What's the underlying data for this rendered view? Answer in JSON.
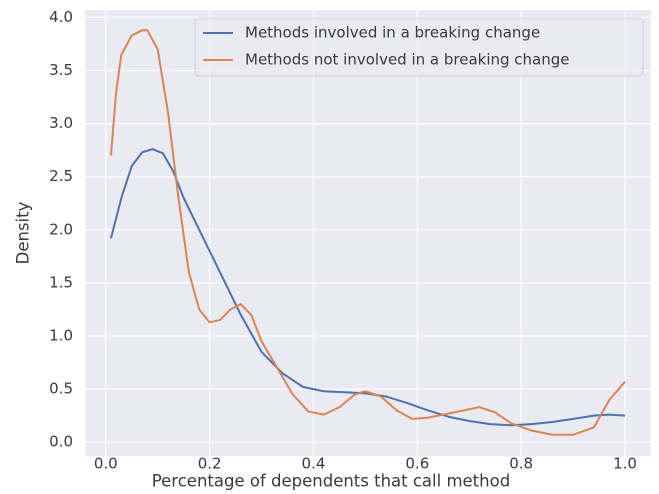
{
  "chart_data": {
    "type": "line",
    "xlabel": "Percentage of dependents that call method",
    "ylabel": "Density",
    "xlim": [
      -0.04,
      1.05
    ],
    "ylim": [
      -0.13,
      4.07
    ],
    "xticks": [
      {
        "value": 0,
        "label": "0.0"
      },
      {
        "value": 0.2,
        "label": "0.2"
      },
      {
        "value": 0.4,
        "label": "0.4"
      },
      {
        "value": 0.6,
        "label": "0.6"
      },
      {
        "value": 0.8,
        "label": "0.8"
      },
      {
        "value": 1,
        "label": "1.0"
      }
    ],
    "yticks": [
      {
        "value": 0,
        "label": "0.0"
      },
      0.5,
      {
        "value": 1,
        "label": "1.0"
      },
      1.5,
      {
        "value": 2,
        "label": "2.0"
      },
      2.5,
      {
        "value": 3,
        "label": "3.0"
      },
      3.5,
      {
        "value": 4,
        "label": "4.0"
      }
    ],
    "grid": true,
    "legend": "upper right",
    "series": [
      {
        "name": "Methods involved in a breaking change",
        "color": "#4c72b0",
        "x": [
          0.01,
          0.03,
          0.05,
          0.07,
          0.09,
          0.11,
          0.13,
          0.15,
          0.17,
          0.2,
          0.23,
          0.26,
          0.3,
          0.34,
          0.38,
          0.42,
          0.46,
          0.5,
          0.54,
          0.58,
          0.62,
          0.66,
          0.7,
          0.74,
          0.78,
          0.82,
          0.86,
          0.9,
          0.94,
          0.97,
          1.0
        ],
        "values": [
          1.92,
          2.3,
          2.6,
          2.73,
          2.76,
          2.72,
          2.55,
          2.3,
          2.1,
          1.8,
          1.5,
          1.2,
          0.85,
          0.65,
          0.52,
          0.48,
          0.47,
          0.46,
          0.43,
          0.37,
          0.3,
          0.24,
          0.2,
          0.17,
          0.16,
          0.17,
          0.19,
          0.22,
          0.25,
          0.26,
          0.25
        ]
      },
      {
        "name": "Methods not involved in a breaking change",
        "color": "#dd8452",
        "x": [
          0.01,
          0.02,
          0.03,
          0.05,
          0.07,
          0.08,
          0.1,
          0.12,
          0.14,
          0.16,
          0.18,
          0.2,
          0.22,
          0.24,
          0.26,
          0.28,
          0.3,
          0.33,
          0.36,
          0.39,
          0.42,
          0.45,
          0.48,
          0.5,
          0.53,
          0.56,
          0.59,
          0.62,
          0.66,
          0.7,
          0.72,
          0.75,
          0.78,
          0.82,
          0.86,
          0.9,
          0.94,
          0.97,
          1.0
        ],
        "values": [
          2.7,
          3.3,
          3.65,
          3.83,
          3.88,
          3.88,
          3.7,
          3.1,
          2.3,
          1.6,
          1.25,
          1.13,
          1.15,
          1.25,
          1.3,
          1.2,
          0.95,
          0.7,
          0.45,
          0.29,
          0.26,
          0.33,
          0.45,
          0.48,
          0.43,
          0.3,
          0.22,
          0.23,
          0.27,
          0.31,
          0.33,
          0.28,
          0.18,
          0.11,
          0.07,
          0.07,
          0.14,
          0.4,
          0.57
        ]
      }
    ]
  }
}
